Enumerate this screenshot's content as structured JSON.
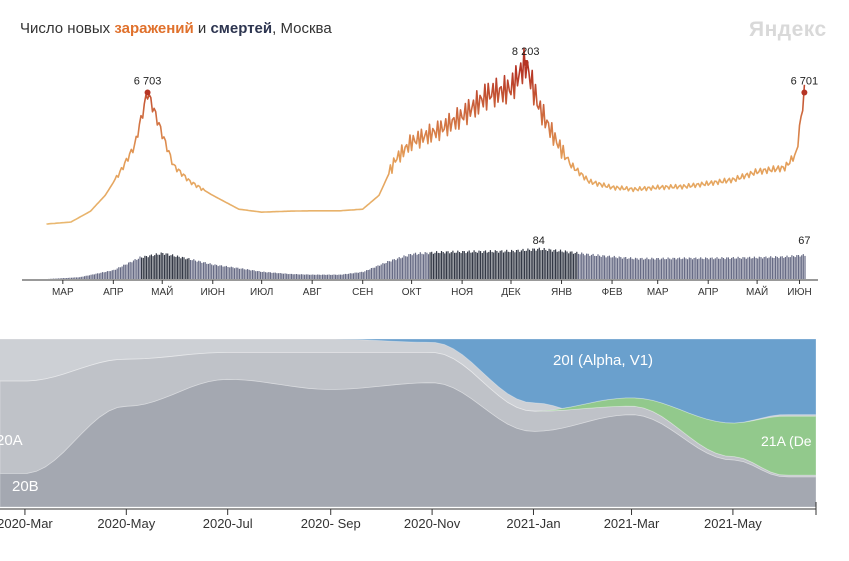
{
  "header": {
    "title_prefix": "Число новых ",
    "title_infections": "заражений",
    "title_and": " и ",
    "title_deaths": "смертей",
    "title_suffix": ", Москва",
    "logo": "Яндекс"
  },
  "colors": {
    "infections_low": "#e9b870",
    "infections_high": "#b63424",
    "deaths": "#4c5170",
    "v_20B": "#a4a8b1",
    "v_20A": "#bfc2c8",
    "v_other": "#cdd0d5",
    "v_alpha": "#6aa0cd",
    "v_delta": "#92c98c"
  },
  "chart_data": [
    {
      "type": "line",
      "title": "Число новых заражений и смертей, Москва",
      "x_months": [
        "МАР",
        "АПР",
        "МАЙ",
        "ИЮН",
        "ИЮЛ",
        "АВГ",
        "СЕН",
        "ОКТ",
        "НОЯ",
        "ДЕК",
        "ЯНВ",
        "ФЕВ",
        "МАР",
        "АПР",
        "МАЙ",
        "ИЮН"
      ],
      "series": [
        {
          "name": "заражений",
          "x": [
            "2020-03-05",
            "2020-03-20",
            "2020-04-01",
            "2020-04-10",
            "2020-04-20",
            "2020-04-28",
            "2020-05-06",
            "2020-05-10",
            "2020-05-15",
            "2020-05-22",
            "2020-06-01",
            "2020-06-15",
            "2020-07-01",
            "2020-07-15",
            "2020-08-01",
            "2020-08-15",
            "2020-09-01",
            "2020-09-15",
            "2020-09-25",
            "2020-10-05",
            "2020-10-15",
            "2020-11-01",
            "2020-11-15",
            "2020-12-01",
            "2020-12-15",
            "2020-12-24",
            "2021-01-01",
            "2021-01-10",
            "2021-01-20",
            "2021-02-01",
            "2021-02-15",
            "2021-03-01",
            "2021-03-15",
            "2021-04-01",
            "2021-04-15",
            "2021-05-01",
            "2021-05-15",
            "2021-06-01",
            "2021-06-08",
            "2021-06-13"
          ],
          "values": [
            50,
            150,
            700,
            1500,
            2800,
            4000,
            6703,
            5800,
            4600,
            3000,
            2200,
            1500,
            800,
            650,
            700,
            720,
            720,
            800,
            1500,
            3300,
            4200,
            4800,
            5500,
            6600,
            6900,
            8203,
            6000,
            4500,
            3100,
            2200,
            1900,
            1800,
            1900,
            1950,
            2100,
            2300,
            2700,
            2900,
            3600,
            6701
          ]
        },
        {
          "name": "смертей",
          "x": [
            "2020-03-05",
            "2020-03-25",
            "2020-04-15",
            "2020-05-01",
            "2020-05-15",
            "2020-06-01",
            "2020-06-15",
            "2020-07-01",
            "2020-07-15",
            "2020-08-01",
            "2020-08-15",
            "2020-09-01",
            "2020-09-15",
            "2020-10-01",
            "2020-10-15",
            "2020-11-01",
            "2020-11-15",
            "2020-12-01",
            "2020-12-15",
            "2021-01-01",
            "2021-01-15",
            "2021-02-01",
            "2021-02-15",
            "2021-03-01",
            "2021-03-15",
            "2021-04-01",
            "2021-04-15",
            "2021-05-01",
            "2021-05-15",
            "2021-06-01",
            "2021-06-13"
          ],
          "values": [
            0,
            5,
            25,
            60,
            72,
            55,
            40,
            30,
            20,
            14,
            12,
            12,
            20,
            50,
            70,
            75,
            76,
            77,
            78,
            84,
            78,
            68,
            62,
            57,
            57,
            58,
            58,
            59,
            60,
            62,
            67
          ]
        }
      ],
      "annotations": [
        "6 703",
        "8 203",
        "6 701",
        "84",
        "67"
      ]
    },
    {
      "type": "area",
      "x_ticks": [
        "2020-Mar",
        "2020-May",
        "2020-Jul",
        "2020- Sep",
        "2020-Nov",
        "2021-Jan",
        "2021-Mar",
        "2021-May"
      ],
      "series_labels": [
        "20A",
        "20B",
        "20I (Alpha, V1)",
        "21A (De"
      ],
      "series": [
        {
          "name": "20B",
          "x": [
            "2020-Mar",
            "2020-May",
            "2020-Jul",
            "2020-Sep",
            "2020-Nov",
            "2021-Jan",
            "2021-Mar",
            "2021-May",
            "2021-Jun"
          ],
          "values": [
            0.2,
            0.6,
            0.76,
            0.7,
            0.74,
            0.45,
            0.55,
            0.28,
            0.18
          ]
        },
        {
          "name": "20A",
          "x": [
            "2020-Mar",
            "2020-May",
            "2020-Jul",
            "2020-Sep",
            "2020-Nov",
            "2021-Jan",
            "2021-Mar",
            "2021-May",
            "2021-Jun"
          ],
          "values": [
            0.55,
            0.28,
            0.16,
            0.22,
            0.18,
            0.12,
            0.05,
            0.02,
            0.01
          ]
        },
        {
          "name": "20I (Alpha, V1)",
          "x": [
            "2020-Mar",
            "2020-May",
            "2020-Jul",
            "2020-Sep",
            "2020-Nov",
            "2021-Jan",
            "2021-Mar",
            "2021-May",
            "2021-Jun"
          ],
          "values": [
            0,
            0,
            0,
            0,
            0.02,
            0.38,
            0.55,
            0.5,
            0.45
          ]
        },
        {
          "name": "21A (De",
          "x": [
            "2020-Mar",
            "2020-May",
            "2020-Jul",
            "2020-Sep",
            "2020-Nov",
            "2021-Jan",
            "2021-Mar",
            "2021-May",
            "2021-Jun"
          ],
          "values": [
            0,
            0,
            0,
            0,
            0,
            0,
            0.05,
            0.2,
            0.35
          ]
        }
      ]
    }
  ]
}
